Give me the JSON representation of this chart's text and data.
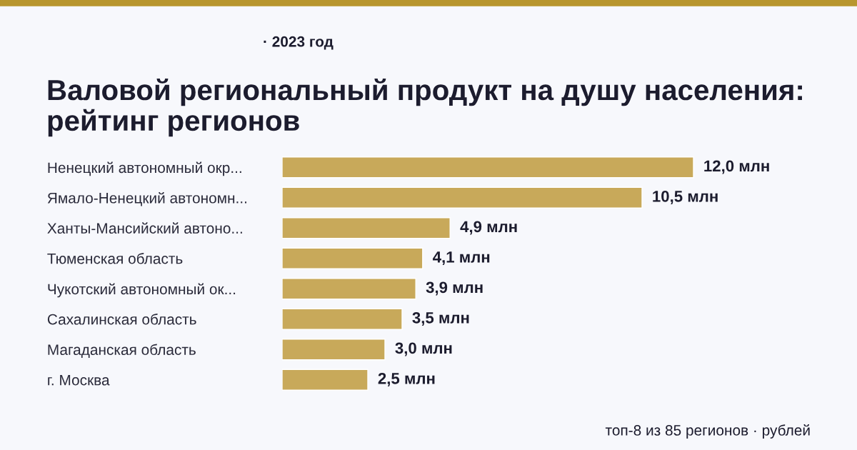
{
  "chart_data": {
    "type": "bar",
    "orientation": "horizontal",
    "subtitle": "· 2023 год",
    "title": "Валовой региональный продукт на душу населения: рейтинг регионов",
    "categories": [
      "Ненецкий автономный окр...",
      "Ямало-Ненецкий автономн...",
      "Ханты-Мансийский автоно...",
      "Тюменская область",
      "Чукотский автономный ок...",
      "Сахалинская область",
      "Магаданская область",
      "г. Москва"
    ],
    "values": [
      12.0,
      10.5,
      4.9,
      4.1,
      3.9,
      3.5,
      3.0,
      2.5
    ],
    "value_labels": [
      "12,0 млн",
      "10,5 млн",
      "4,9 млн",
      "4,1 млн",
      "3,9 млн",
      "3,5 млн",
      "3,0 млн",
      "2,5 млн"
    ],
    "color": "#c8a95a",
    "annotations": [
      "топ-8 из 85 регионов · рублей"
    ]
  }
}
